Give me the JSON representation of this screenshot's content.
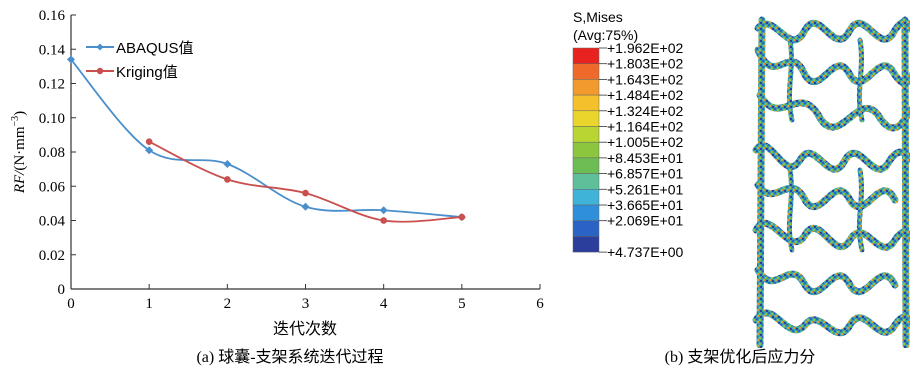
{
  "chart_data": [
    {
      "type": "line",
      "xlabel": "迭代次数",
      "ylabel_main": "RF/",
      "ylabel_unit": "(N·mm",
      "ylabel_exp": "−3",
      "ylabel_close": ")",
      "xlim": [
        0,
        6
      ],
      "ylim": [
        0,
        0.16
      ],
      "xticks": [
        "0",
        "1",
        "2",
        "3",
        "4",
        "5",
        "6"
      ],
      "yticks": [
        "0",
        "0.02",
        "0.04",
        "0.06",
        "0.08",
        "0.10",
        "0.12",
        "0.14",
        "0.16"
      ],
      "grid": false,
      "legend_position": "top-left",
      "series": [
        {
          "name": "ABAQUS值",
          "color": "#4a8fcc",
          "marker": "diamond",
          "x": [
            0,
            1,
            2,
            3,
            4,
            5
          ],
          "y": [
            0.134,
            0.081,
            0.073,
            0.048,
            0.046,
            0.042
          ]
        },
        {
          "name": "Kriging值",
          "color": "#c9504f",
          "marker": "circle",
          "x": [
            1,
            2,
            3,
            4,
            5
          ],
          "y": [
            0.086,
            0.064,
            0.056,
            0.04,
            0.042
          ]
        }
      ],
      "caption": "(a) 球囊-支架系统迭代过程"
    },
    {
      "type": "heatmap",
      "legend_title_line1": "S,Mises",
      "legend_title_line2": "(Avg:75%)",
      "levels": [
        "+1.962E+02",
        "+1.803E+02",
        "+1.643E+02",
        "+1.484E+02",
        "+1.324E+02",
        "+1.164E+02",
        "+1.005E+02",
        "+8.453E+01",
        "+6.857E+01",
        "+5.261E+01",
        "+3.665E+01",
        "+2.069E+01",
        "+4.737E+00"
      ],
      "colors": [
        "#e8231f",
        "#ef6a2a",
        "#f29a2d",
        "#f4c12c",
        "#e9d52c",
        "#b8d531",
        "#8cc63f",
        "#6dbd55",
        "#5fbf9a",
        "#3fb3d8",
        "#2f8fdb",
        "#2a63c4",
        "#2b3e9b"
      ],
      "caption": "(b) 支架优化后应力分"
    }
  ]
}
